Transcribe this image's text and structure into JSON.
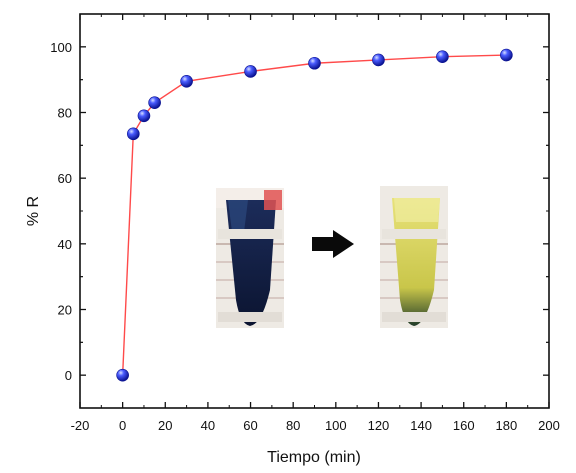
{
  "chart_data": {
    "type": "line",
    "xlabel": "Tiempo (min)",
    "ylabel": "% R",
    "xlim": [
      -20,
      200
    ],
    "ylim": [
      -10,
      110
    ],
    "xticks": [
      -20,
      0,
      20,
      40,
      60,
      80,
      100,
      120,
      140,
      160,
      180,
      200
    ],
    "yticks": [
      0,
      20,
      40,
      60,
      80,
      100
    ],
    "grid": false,
    "series": [
      {
        "x": [
          0,
          5,
          10,
          15,
          30,
          60,
          90,
          120,
          150,
          180
        ],
        "y": [
          0,
          73.5,
          79,
          83,
          89.5,
          92.5,
          95,
          96,
          97,
          97.5
        ]
      }
    ],
    "colors": {
      "line": "#ff4a4a",
      "marker": "#2a3df0",
      "axis": "#111111"
    },
    "inset": {
      "images": [
        "test-tube-before-photo",
        "test-tube-after-photo"
      ],
      "arrow": "right-arrow-icon"
    }
  }
}
